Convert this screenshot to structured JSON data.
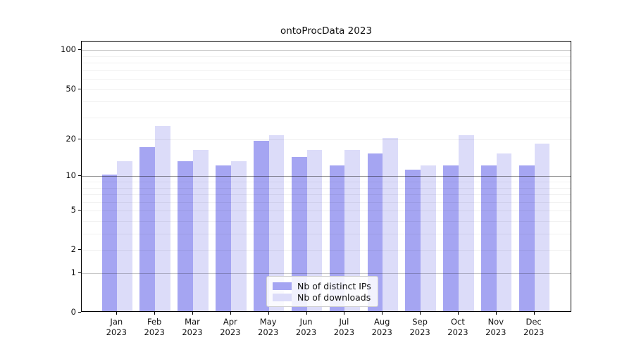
{
  "title": "ontoProcData 2023",
  "chart_data": {
    "type": "bar",
    "title": "ontoProcData 2023",
    "categories": [
      "Jan 2023",
      "Feb 2023",
      "Mar 2023",
      "Apr 2023",
      "May 2023",
      "Jun 2023",
      "Jul 2023",
      "Aug 2023",
      "Sep 2023",
      "Oct 2023",
      "Nov 2023",
      "Dec 2023"
    ],
    "x_tick_labels": [
      [
        "Jan",
        "2023"
      ],
      [
        "Feb",
        "2023"
      ],
      [
        "Mar",
        "2023"
      ],
      [
        "Apr",
        "2023"
      ],
      [
        "May",
        "2023"
      ],
      [
        "Jun",
        "2023"
      ],
      [
        "Jul",
        "2023"
      ],
      [
        "Aug",
        "2023"
      ],
      [
        "Sep",
        "2023"
      ],
      [
        "Oct",
        "2023"
      ],
      [
        "Nov",
        "2023"
      ],
      [
        "Dec",
        "2023"
      ]
    ],
    "series": [
      {
        "name": "Nb of distinct IPs",
        "color": "#a5a5f2",
        "values": [
          10,
          17,
          13,
          12,
          19,
          14,
          12,
          15,
          11,
          12,
          12,
          12
        ]
      },
      {
        "name": "Nb of downloads",
        "color": "#dcdcf9",
        "values": [
          13,
          25,
          16,
          13,
          21,
          16,
          16,
          20,
          12,
          21,
          15,
          18
        ]
      }
    ],
    "yscale": "symlog",
    "y_tick_values": [
      0,
      1,
      2,
      5,
      10,
      20,
      50,
      100
    ],
    "y_tick_labels": [
      "0",
      "1",
      "2",
      "5",
      "10",
      "20",
      "50",
      "100"
    ],
    "y_major_gridlines": [
      1,
      10,
      100
    ],
    "y_minor_gridlines": [
      2,
      3,
      4,
      5,
      6,
      7,
      8,
      9,
      20,
      30,
      40,
      50,
      60,
      70,
      80,
      90
    ],
    "ylim": [
      0,
      117
    ],
    "grid": true,
    "legend_position": "lower center",
    "colors": {
      "axis": "#000000",
      "grid_minor": "rgba(0,0,0,0.055)",
      "grid_major_soft": "rgba(0,0,0,0.21)",
      "grid_major_strong": "rgba(0,0,0,0.42)"
    }
  }
}
